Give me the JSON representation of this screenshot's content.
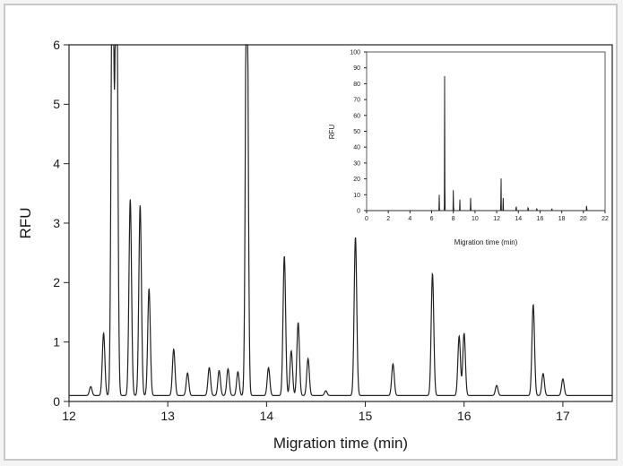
{
  "chart_data": [
    {
      "type": "line",
      "title": "",
      "xlabel": "Migration time (min)",
      "ylabel": "RFU",
      "xlim": [
        12,
        17.5
      ],
      "ylim": [
        0,
        6
      ],
      "xticks": [
        12,
        13,
        14,
        15,
        16,
        17
      ],
      "yticks": [
        0,
        1,
        2,
        3,
        4,
        5,
        6
      ],
      "grid": false,
      "legend": "none",
      "baseline": 0.1,
      "series": [
        {
          "peaks": [
            {
              "x": 12.22,
              "y": 0.25
            },
            {
              "x": 12.35,
              "y": 1.15
            },
            {
              "x": 12.44,
              "y": 8.5
            },
            {
              "x": 12.48,
              "y": 8.5
            },
            {
              "x": 12.62,
              "y": 3.4
            },
            {
              "x": 12.72,
              "y": 3.3
            },
            {
              "x": 12.81,
              "y": 1.9
            },
            {
              "x": 13.06,
              "y": 0.88
            },
            {
              "x": 13.2,
              "y": 0.48
            },
            {
              "x": 13.42,
              "y": 0.57
            },
            {
              "x": 13.52,
              "y": 0.52
            },
            {
              "x": 13.61,
              "y": 0.55
            },
            {
              "x": 13.71,
              "y": 0.5
            },
            {
              "x": 13.8,
              "y": 8.5
            },
            {
              "x": 14.02,
              "y": 0.57
            },
            {
              "x": 14.18,
              "y": 2.45
            },
            {
              "x": 14.25,
              "y": 0.85
            },
            {
              "x": 14.32,
              "y": 1.33
            },
            {
              "x": 14.42,
              "y": 0.72
            },
            {
              "x": 14.6,
              "y": 0.18
            },
            {
              "x": 14.9,
              "y": 2.77
            },
            {
              "x": 15.28,
              "y": 0.63
            },
            {
              "x": 15.68,
              "y": 2.15
            },
            {
              "x": 15.95,
              "y": 1.1
            },
            {
              "x": 16.0,
              "y": 1.15
            },
            {
              "x": 16.33,
              "y": 0.27
            },
            {
              "x": 16.7,
              "y": 1.63
            },
            {
              "x": 16.8,
              "y": 0.47
            },
            {
              "x": 17.0,
              "y": 0.38
            }
          ]
        }
      ]
    },
    {
      "type": "line",
      "title": "",
      "xlabel": "Migration time (min)",
      "ylabel": "RFU",
      "xlim": [
        0,
        22
      ],
      "ylim": [
        0,
        100
      ],
      "xticks": [
        0,
        2,
        4,
        6,
        8,
        10,
        12,
        14,
        16,
        18,
        20,
        22
      ],
      "yticks": [
        0,
        10,
        20,
        30,
        40,
        50,
        60,
        70,
        80,
        90,
        100
      ],
      "grid": false,
      "legend": "none",
      "series": [
        {
          "peaks": [
            {
              "x": 6.7,
              "y": 10
            },
            {
              "x": 7.2,
              "y": 91
            },
            {
              "x": 8.0,
              "y": 14
            },
            {
              "x": 8.6,
              "y": 7
            },
            {
              "x": 9.6,
              "y": 9
            },
            {
              "x": 12.4,
              "y": 23
            },
            {
              "x": 12.6,
              "y": 8
            },
            {
              "x": 13.8,
              "y": 4
            },
            {
              "x": 14.9,
              "y": 3
            },
            {
              "x": 15.7,
              "y": 2
            },
            {
              "x": 17.1,
              "y": 1.5
            },
            {
              "x": 20.3,
              "y": 4
            }
          ]
        }
      ]
    }
  ]
}
